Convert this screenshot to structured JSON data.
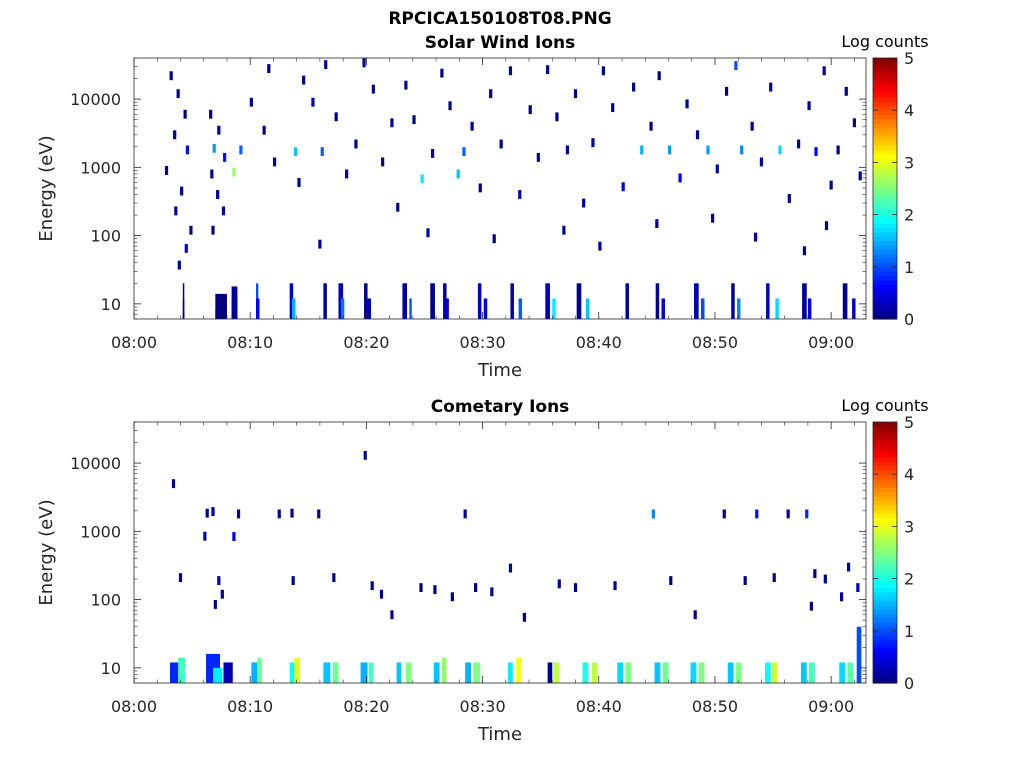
{
  "figure_title": "RPCICA150108T08.PNG",
  "chart_data": [
    {
      "type": "heatmap",
      "title": "Solar Wind Ions",
      "xlabel": "Time",
      "ylabel": "Energy (eV)",
      "x_ticks": [
        "08:00",
        "08:10",
        "08:20",
        "08:30",
        "08:40",
        "08:50",
        "09:00"
      ],
      "x_range_min": [
        0,
        63
      ],
      "y_scale": "log",
      "y_ticks": [
        "10",
        "100",
        "1000",
        "10000"
      ],
      "y_range": [
        6,
        40000
      ],
      "colorbar": {
        "label": "Log counts",
        "ticks": [
          "0",
          "1",
          "2",
          "3",
          "4",
          "5"
        ],
        "range": [
          0,
          5
        ],
        "colormap": "jet"
      },
      "cells": [
        [
          4.2,
          3.2,
          20,
          0.1
        ],
        [
          4.2,
          3.2,
          12,
          0.2
        ],
        [
          4.2,
          3.2,
          8,
          0.0
        ],
        [
          7.0,
          8.0,
          14,
          0.0
        ],
        [
          7.0,
          8.0,
          8,
          0.0
        ],
        [
          8.4,
          8.9,
          18,
          0.2
        ],
        [
          8.4,
          8.9,
          12,
          0.1
        ],
        [
          10.5,
          10.7,
          20,
          1.0
        ],
        [
          10.5,
          10.8,
          12,
          0.6
        ],
        [
          13.4,
          13.7,
          20,
          0.4
        ],
        [
          13.6,
          13.9,
          12,
          1.5
        ],
        [
          16.3,
          16.6,
          20,
          0.2
        ],
        [
          17.6,
          18.0,
          20,
          0.3
        ],
        [
          17.8,
          18.1,
          12,
          1.2
        ],
        [
          19.8,
          20.1,
          20,
          0.1
        ],
        [
          20.1,
          20.4,
          12,
          0.3
        ],
        [
          23.1,
          23.5,
          20,
          0.2
        ],
        [
          23.7,
          23.9,
          12,
          1.0
        ],
        [
          25.5,
          25.9,
          20,
          0.1
        ],
        [
          26.6,
          26.9,
          20,
          0.2
        ],
        [
          26.8,
          27.1,
          12,
          0.5
        ],
        [
          29.6,
          29.9,
          20,
          0.3
        ],
        [
          30.1,
          30.4,
          12,
          0.6
        ],
        [
          32.4,
          32.7,
          20,
          0.2
        ],
        [
          33.1,
          33.4,
          12,
          1.1
        ],
        [
          35.4,
          35.8,
          20,
          0.3
        ],
        [
          36.0,
          36.3,
          12,
          1.8
        ],
        [
          38.1,
          38.5,
          20,
          0.1
        ],
        [
          38.9,
          39.2,
          12,
          1.6
        ],
        [
          42.3,
          42.6,
          20,
          0.2
        ],
        [
          44.9,
          45.2,
          20,
          0.1
        ],
        [
          45.4,
          45.7,
          12,
          0.6
        ],
        [
          48.2,
          48.6,
          20,
          0.3
        ],
        [
          48.8,
          49.1,
          12,
          1.0
        ],
        [
          51.4,
          51.7,
          20,
          0.2
        ],
        [
          51.9,
          52.2,
          12,
          1.3
        ],
        [
          54.4,
          54.7,
          20,
          0.3
        ],
        [
          55.2,
          55.5,
          12,
          1.7
        ],
        [
          57.5,
          57.9,
          20,
          0.2
        ],
        [
          58.0,
          58.3,
          12,
          0.5
        ],
        [
          61.0,
          61.4,
          20,
          0.1
        ],
        [
          61.8,
          62.1,
          12,
          0.4
        ]
      ],
      "dots": [
        [
          3.2,
          22000,
          0.1
        ],
        [
          3.8,
          12000,
          0.2
        ],
        [
          4.4,
          6000,
          0.1
        ],
        [
          3.5,
          3000,
          0.1
        ],
        [
          4.6,
          1800,
          0.7
        ],
        [
          2.8,
          900,
          0.1
        ],
        [
          4.1,
          450,
          0.1
        ],
        [
          3.6,
          230,
          0.1
        ],
        [
          4.9,
          120,
          0.1
        ],
        [
          4.5,
          65,
          0.6
        ],
        [
          3.9,
          37,
          0.1
        ],
        [
          6.6,
          6000,
          0.1
        ],
        [
          7.3,
          3500,
          0.2
        ],
        [
          6.9,
          1900,
          1.4
        ],
        [
          7.8,
          1400,
          0.7
        ],
        [
          6.7,
          800,
          0.1
        ],
        [
          7.2,
          400,
          0.2
        ],
        [
          7.7,
          230,
          0.1
        ],
        [
          6.8,
          120,
          0.1
        ],
        [
          8.6,
          850,
          2.6
        ],
        [
          9.2,
          1800,
          1.1
        ],
        [
          10.1,
          9000,
          0.2
        ],
        [
          11.2,
          3500,
          0.1
        ],
        [
          11.6,
          28000,
          0.1
        ],
        [
          12.1,
          1200,
          0.2
        ],
        [
          13.9,
          1700,
          1.6
        ],
        [
          14.6,
          19000,
          0.1
        ],
        [
          14.2,
          600,
          0.1
        ],
        [
          15.4,
          9000,
          0.2
        ],
        [
          16.2,
          1700,
          1.1
        ],
        [
          16.5,
          32000,
          0.1
        ],
        [
          17.4,
          5500,
          0.1
        ],
        [
          18.3,
          800,
          0.3
        ],
        [
          19.1,
          2200,
          0.1
        ],
        [
          19.8,
          34000,
          0.1
        ],
        [
          20.6,
          14000,
          0.1
        ],
        [
          21.4,
          1200,
          0.1
        ],
        [
          22.2,
          4500,
          0.1
        ],
        [
          22.7,
          260,
          0.1
        ],
        [
          23.4,
          16000,
          0.2
        ],
        [
          24.1,
          5000,
          0.1
        ],
        [
          24.8,
          680,
          1.8
        ],
        [
          25.7,
          1600,
          0.1
        ],
        [
          26.5,
          24000,
          0.1
        ],
        [
          27.2,
          8000,
          0.1
        ],
        [
          27.9,
          800,
          1.6
        ],
        [
          28.4,
          1700,
          1.1
        ],
        [
          29.1,
          4000,
          0.1
        ],
        [
          29.8,
          500,
          0.1
        ],
        [
          30.7,
          12000,
          0.1
        ],
        [
          31.6,
          2200,
          0.1
        ],
        [
          32.4,
          26000,
          0.1
        ],
        [
          33.2,
          400,
          0.2
        ],
        [
          34.1,
          7000,
          0.1
        ],
        [
          34.8,
          1400,
          0.2
        ],
        [
          35.6,
          27000,
          0.1
        ],
        [
          36.4,
          5500,
          0.1
        ],
        [
          37.3,
          1800,
          0.2
        ],
        [
          38.0,
          12000,
          0.1
        ],
        [
          38.7,
          300,
          0.1
        ],
        [
          39.5,
          2300,
          0.2
        ],
        [
          40.4,
          26000,
          0.1
        ],
        [
          41.2,
          7500,
          0.1
        ],
        [
          42.1,
          520,
          0.5
        ],
        [
          43.0,
          15000,
          0.1
        ],
        [
          43.7,
          1800,
          1.5
        ],
        [
          44.5,
          4000,
          0.1
        ],
        [
          45.2,
          22000,
          0.1
        ],
        [
          46.1,
          1800,
          1.4
        ],
        [
          47.0,
          700,
          0.6
        ],
        [
          47.6,
          8500,
          0.1
        ],
        [
          48.5,
          3000,
          0.2
        ],
        [
          49.4,
          1800,
          1.4
        ],
        [
          50.2,
          950,
          0.2
        ],
        [
          51.0,
          13000,
          0.1
        ],
        [
          51.8,
          31000,
          1.0
        ],
        [
          52.3,
          1800,
          1.3
        ],
        [
          53.2,
          4000,
          0.1
        ],
        [
          54.0,
          1200,
          0.2
        ],
        [
          54.8,
          15000,
          0.1
        ],
        [
          55.6,
          1800,
          1.7
        ],
        [
          56.4,
          350,
          0.1
        ],
        [
          57.2,
          2200,
          0.1
        ],
        [
          58.1,
          8000,
          0.1
        ],
        [
          58.7,
          1700,
          0.6
        ],
        [
          59.4,
          26000,
          0.1
        ],
        [
          60.0,
          550,
          0.1
        ],
        [
          60.6,
          1800,
          0.2
        ],
        [
          61.3,
          13000,
          0.1
        ],
        [
          62.0,
          4500,
          0.1
        ],
        [
          62.5,
          750,
          0.1
        ],
        [
          25.3,
          110,
          0.1
        ],
        [
          31.0,
          90,
          0.1
        ],
        [
          37.0,
          120,
          0.1
        ],
        [
          45.0,
          150,
          0.1
        ],
        [
          53.5,
          95,
          0.1
        ],
        [
          59.6,
          140,
          0.1
        ],
        [
          16.0,
          75,
          0.1
        ],
        [
          40.1,
          70,
          0.1
        ],
        [
          49.8,
          180,
          0.1
        ],
        [
          57.7,
          60,
          0.1
        ]
      ]
    },
    {
      "type": "heatmap",
      "title": "Cometary Ions",
      "xlabel": "Time",
      "ylabel": "Energy (eV)",
      "x_ticks": [
        "08:00",
        "08:10",
        "08:20",
        "08:30",
        "08:40",
        "08:50",
        "09:00"
      ],
      "x_range_min": [
        0,
        63
      ],
      "y_scale": "log",
      "y_ticks": [
        "10",
        "100",
        "1000",
        "10000"
      ],
      "y_range": [
        6,
        40000
      ],
      "colorbar": {
        "label": "Log counts",
        "ticks": [
          "0",
          "1",
          "2",
          "3",
          "4",
          "5"
        ],
        "range": [
          0,
          5
        ],
        "colormap": "jet"
      },
      "cells": [
        [
          3.1,
          3.9,
          12,
          0.8
        ],
        [
          3.8,
          4.4,
          14,
          2.2
        ],
        [
          6.2,
          7.4,
          16,
          0.8
        ],
        [
          6.8,
          7.6,
          10,
          1.8
        ],
        [
          7.7,
          8.5,
          12,
          0.3
        ],
        [
          10.1,
          10.7,
          12,
          1.5
        ],
        [
          10.6,
          11.0,
          14,
          2.4
        ],
        [
          13.4,
          14.1,
          12,
          1.9
        ],
        [
          13.8,
          14.3,
          14,
          3.0
        ],
        [
          16.3,
          16.9,
          12,
          1.6
        ],
        [
          17.1,
          17.6,
          12,
          2.4
        ],
        [
          19.5,
          20.1,
          12,
          1.5
        ],
        [
          20.2,
          20.6,
          12,
          2.2
        ],
        [
          22.6,
          23.0,
          12,
          1.6
        ],
        [
          23.4,
          23.9,
          12,
          2.5
        ],
        [
          25.8,
          26.3,
          12,
          1.6
        ],
        [
          26.5,
          26.9,
          14,
          2.6
        ],
        [
          28.5,
          29.0,
          12,
          1.5
        ],
        [
          29.2,
          29.8,
          12,
          2.5
        ],
        [
          32.2,
          32.6,
          12,
          1.8
        ],
        [
          32.9,
          33.3,
          14,
          3.1
        ],
        [
          35.6,
          36.0,
          12,
          0.1
        ],
        [
          36.1,
          36.6,
          12,
          2.8
        ],
        [
          38.6,
          39.1,
          12,
          2.0
        ],
        [
          39.4,
          39.9,
          12,
          2.8
        ],
        [
          41.6,
          42.1,
          12,
          1.7
        ],
        [
          42.3,
          42.8,
          12,
          2.5
        ],
        [
          44.8,
          45.3,
          12,
          1.6
        ],
        [
          45.5,
          46.0,
          12,
          2.4
        ],
        [
          47.9,
          48.4,
          12,
          1.7
        ],
        [
          48.6,
          49.1,
          12,
          2.5
        ],
        [
          51.1,
          51.6,
          12,
          1.6
        ],
        [
          51.8,
          52.3,
          12,
          2.5
        ],
        [
          54.3,
          54.8,
          12,
          1.9
        ],
        [
          54.9,
          55.4,
          12,
          2.9
        ],
        [
          57.4,
          57.9,
          12,
          1.6
        ],
        [
          58.1,
          58.6,
          12,
          2.2
        ],
        [
          60.7,
          61.2,
          12,
          1.7
        ],
        [
          61.4,
          61.9,
          12,
          2.3
        ],
        [
          62.2,
          62.6,
          40,
          1.0
        ]
      ],
      "dots": [
        [
          3.4,
          5000,
          0.1
        ],
        [
          4.0,
          210,
          0.2
        ],
        [
          6.3,
          1850,
          0.1
        ],
        [
          6.8,
          1950,
          0.2
        ],
        [
          6.1,
          850,
          0.1
        ],
        [
          7.3,
          190,
          0.3
        ],
        [
          7.6,
          120,
          0.1
        ],
        [
          7.0,
          85,
          0.1
        ],
        [
          9.0,
          1800,
          0.2
        ],
        [
          8.6,
          840,
          0.6
        ],
        [
          12.5,
          1800,
          0.2
        ],
        [
          13.6,
          1850,
          0.1
        ],
        [
          15.9,
          1800,
          0.1
        ],
        [
          19.9,
          13000,
          0.1
        ],
        [
          13.7,
          190,
          0.1
        ],
        [
          17.2,
          210,
          0.1
        ],
        [
          20.5,
          160,
          0.1
        ],
        [
          21.3,
          120,
          0.1
        ],
        [
          24.7,
          150,
          0.1
        ],
        [
          25.9,
          140,
          0.1
        ],
        [
          28.5,
          1800,
          0.2
        ],
        [
          29.4,
          150,
          0.1
        ],
        [
          30.8,
          130,
          0.1
        ],
        [
          32.4,
          290,
          0.1
        ],
        [
          38.0,
          150,
          0.1
        ],
        [
          41.4,
          160,
          0.1
        ],
        [
          44.7,
          1800,
          1.3
        ],
        [
          46.2,
          190,
          0.1
        ],
        [
          50.8,
          1800,
          0.2
        ],
        [
          53.6,
          1800,
          0.7
        ],
        [
          56.3,
          1800,
          0.2
        ],
        [
          57.9,
          1800,
          0.8
        ],
        [
          58.6,
          240,
          0.1
        ],
        [
          59.5,
          200,
          0.1
        ],
        [
          61.5,
          300,
          0.1
        ],
        [
          62.3,
          150,
          0.3
        ],
        [
          52.6,
          190,
          0.1
        ],
        [
          55.1,
          210,
          0.1
        ],
        [
          36.6,
          170,
          0.1
        ],
        [
          27.4,
          110,
          0.1
        ],
        [
          22.2,
          60,
          0.1
        ],
        [
          33.6,
          55,
          0.1
        ],
        [
          48.3,
          60,
          0.1
        ],
        [
          58.3,
          80,
          0.1
        ],
        [
          60.9,
          110,
          0.2
        ]
      ]
    }
  ]
}
